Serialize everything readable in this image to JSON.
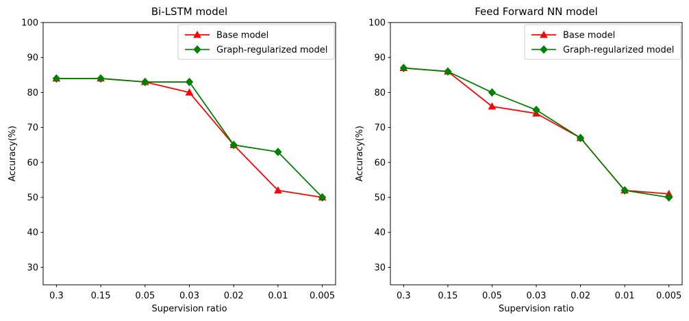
{
  "figure": {
    "background": "#ffffff"
  },
  "chart_data": [
    {
      "type": "line",
      "title": "Bi-LSTM model",
      "xlabel": "Supervision ratio",
      "ylabel": "Accuracy(%)",
      "categories": [
        "0.3",
        "0.15",
        "0.05",
        "0.03",
        "0.02",
        "0.01",
        "0.005"
      ],
      "yticks": [
        30,
        40,
        50,
        60,
        70,
        80,
        90,
        100
      ],
      "ylim": [
        25,
        100
      ],
      "grid": false,
      "legend_position": "upper right",
      "legend_labels": [
        "Base model",
        "Graph-regularized model"
      ],
      "series": [
        {
          "name": "Base model",
          "color": "#ff0000",
          "marker": "triangle-up",
          "values": [
            84,
            84,
            83,
            80,
            65,
            52,
            50
          ]
        },
        {
          "name": "Graph-regularized model",
          "color": "#008000",
          "marker": "diamond",
          "values": [
            84,
            84,
            83,
            83,
            65,
            63,
            50
          ]
        }
      ]
    },
    {
      "type": "line",
      "title": "Feed Forward NN model",
      "xlabel": "Supervision ratio",
      "ylabel": "Accuracy(%)",
      "categories": [
        "0.3",
        "0.15",
        "0.05",
        "0.03",
        "0.02",
        "0.01",
        "0.005"
      ],
      "yticks": [
        30,
        40,
        50,
        60,
        70,
        80,
        90,
        100
      ],
      "ylim": [
        25,
        100
      ],
      "grid": false,
      "legend_position": "upper right",
      "legend_labels": [
        "Base model",
        "Graph-regularized model"
      ],
      "series": [
        {
          "name": "Base model",
          "color": "#ff0000",
          "marker": "triangle-up",
          "values": [
            87,
            86,
            76,
            74,
            67,
            52,
            51
          ]
        },
        {
          "name": "Graph-regularized model",
          "color": "#008000",
          "marker": "diamond",
          "values": [
            87,
            86,
            80,
            75,
            67,
            52,
            50
          ]
        }
      ]
    }
  ],
  "style": {
    "axis_color": "#000000",
    "legend_border_color": "#cccccc",
    "legend_background": "#ffffff"
  }
}
